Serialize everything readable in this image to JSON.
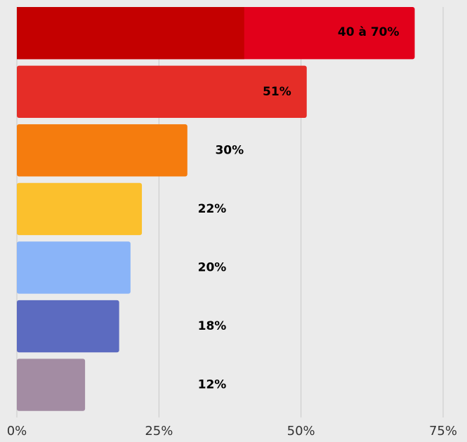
{
  "chart_data": {
    "type": "hbar",
    "categories": [
      null,
      null,
      null,
      null,
      null,
      null,
      null
    ],
    "values": [
      70,
      51,
      30,
      22,
      20,
      18,
      12
    ],
    "lows": [
      40,
      null,
      null,
      null,
      null,
      null,
      null
    ],
    "value_labels": [
      "40 à 70%",
      "51%",
      "30%",
      "22%",
      "20%",
      "18%",
      "12%"
    ],
    "colors": [
      "#e2001a",
      "#e52d27",
      "#f57c0e",
      "#fbc02d",
      "#8ab4f8",
      "#5c6bc0",
      "#a38ca3"
    ],
    "low_color": "#c40000",
    "xlim": [
      0,
      75
    ],
    "xticks": [
      {
        "value": 0,
        "label": "0%"
      },
      {
        "value": 25,
        "label": "25%"
      },
      {
        "value": 50,
        "label": "50%"
      },
      {
        "value": 75,
        "label": "75%"
      }
    ],
    "grid": true
  }
}
